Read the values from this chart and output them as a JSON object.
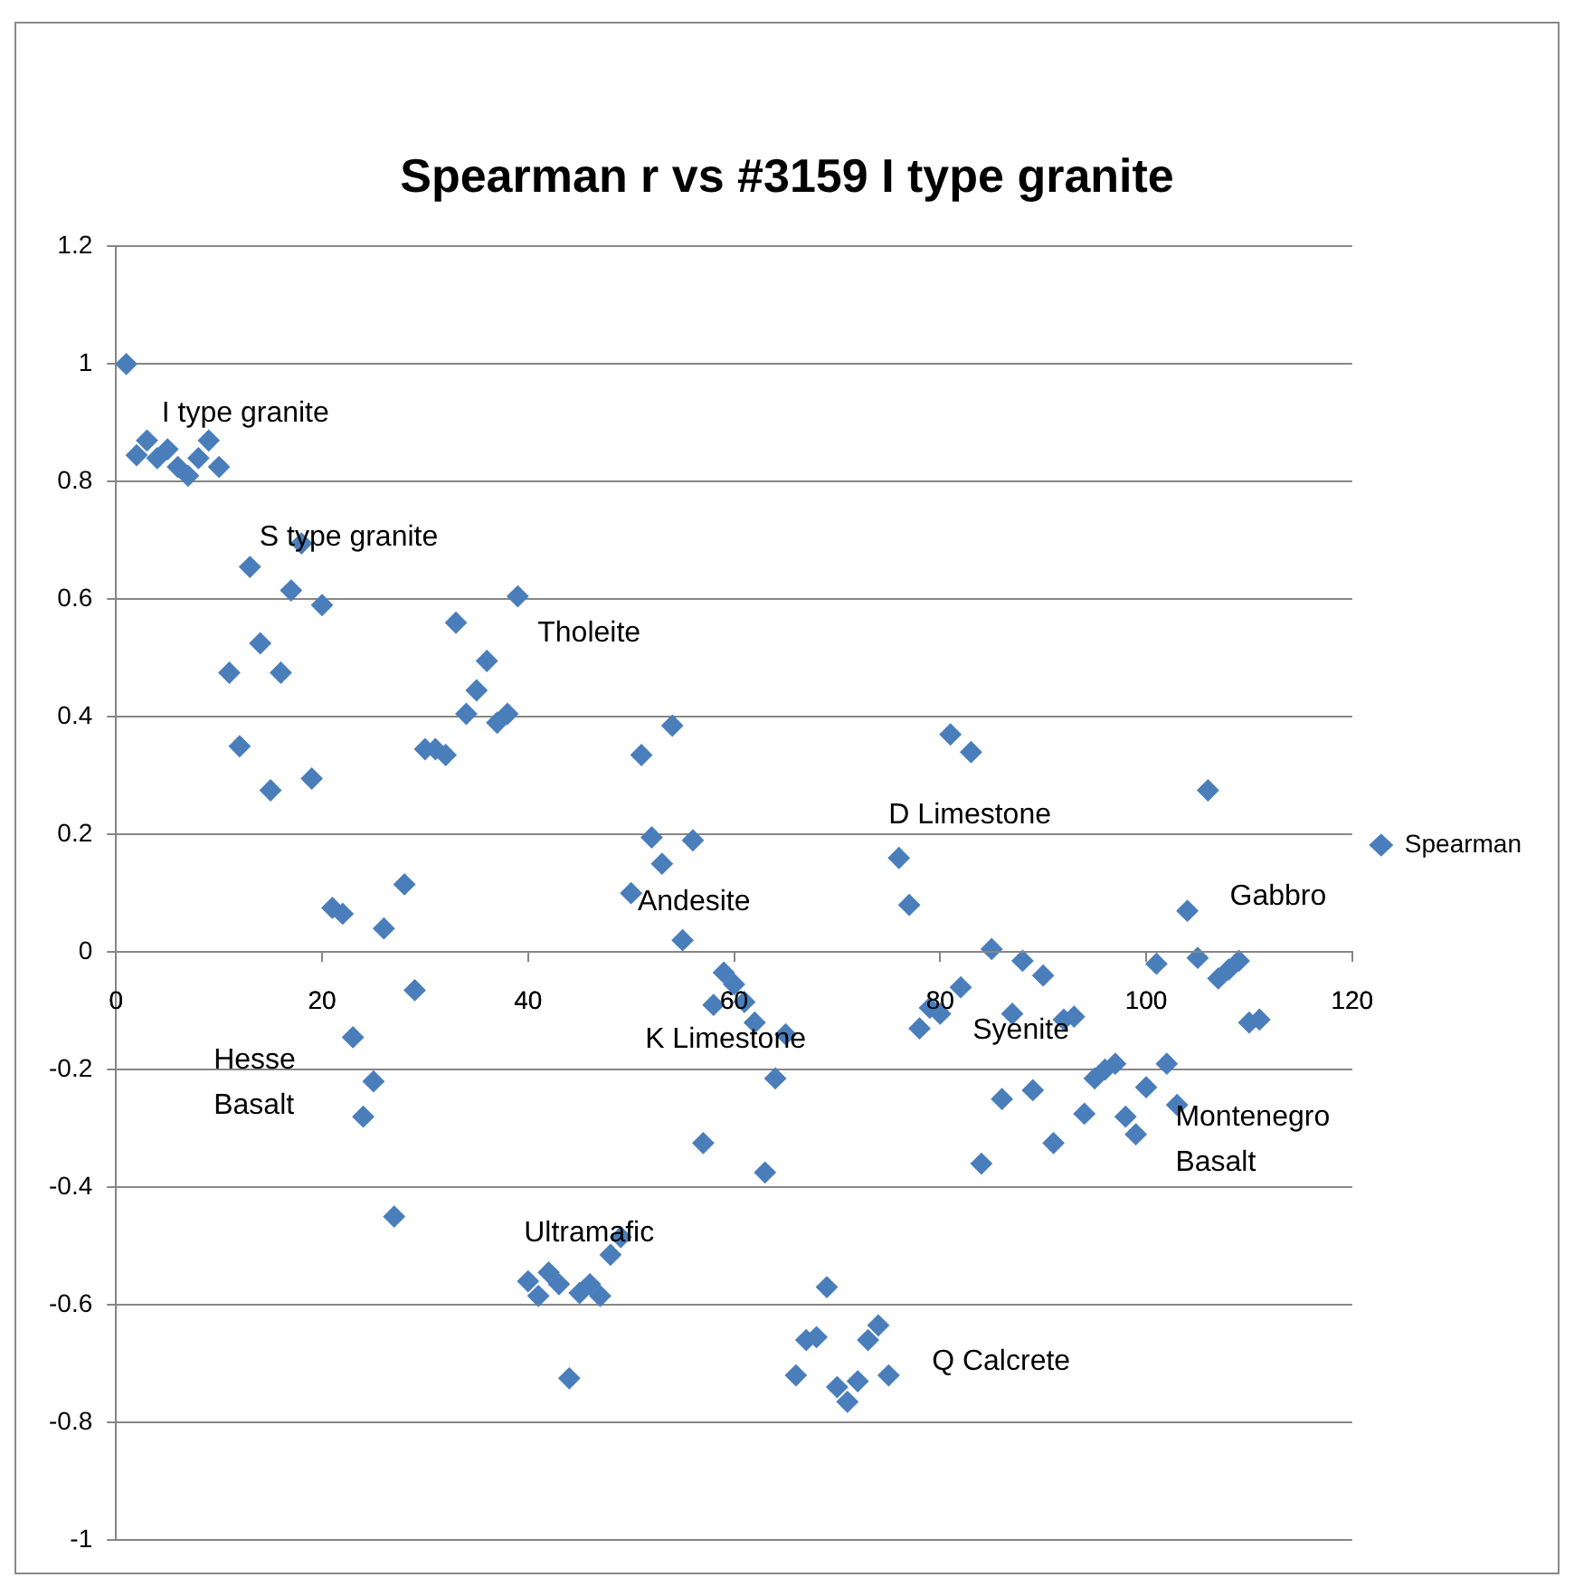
{
  "chart_data": {
    "type": "scatter",
    "title": "Spearman r vs #3159 I type granite",
    "x": [
      1,
      2,
      3,
      4,
      5,
      6,
      7,
      8,
      9,
      10,
      11,
      12,
      13,
      14,
      15,
      16,
      17,
      18,
      19,
      20,
      21,
      22,
      23,
      24,
      25,
      26,
      27,
      28,
      29,
      30,
      31,
      32,
      33,
      34,
      35,
      36,
      37,
      38,
      39,
      40,
      41,
      42,
      43,
      44,
      45,
      46,
      47,
      48,
      49,
      50,
      51,
      52,
      53,
      54,
      55,
      56,
      57,
      58,
      59,
      60,
      61,
      62,
      63,
      64,
      65,
      66,
      67,
      68,
      69,
      70,
      71,
      72,
      73,
      74,
      75,
      76,
      77,
      78,
      79,
      80,
      81,
      82,
      83,
      84,
      85,
      86,
      87,
      88,
      89,
      90,
      91,
      92,
      93,
      94,
      95,
      96,
      97,
      98,
      99,
      100,
      101,
      102,
      103,
      104,
      105,
      106,
      107,
      108,
      109,
      110,
      111
    ],
    "series": [
      {
        "name": "Spearman",
        "color": "#4a7ebb",
        "values": [
          1.0,
          0.845,
          0.87,
          0.84,
          0.855,
          0.825,
          0.81,
          0.84,
          0.87,
          0.825,
          0.475,
          0.35,
          0.655,
          0.525,
          0.275,
          0.475,
          0.615,
          0.695,
          0.295,
          0.59,
          0.075,
          0.065,
          -0.145,
          -0.28,
          -0.22,
          0.04,
          -0.45,
          0.115,
          -0.065,
          0.345,
          0.345,
          0.335,
          0.56,
          0.405,
          0.445,
          0.495,
          0.39,
          0.405,
          0.605,
          -0.56,
          -0.585,
          -0.545,
          -0.565,
          -0.725,
          -0.58,
          -0.565,
          -0.585,
          -0.515,
          -0.485,
          0.1,
          0.335,
          0.195,
          0.15,
          0.385,
          0.02,
          0.19,
          -0.325,
          -0.09,
          -0.035,
          -0.055,
          -0.085,
          -0.12,
          -0.375,
          -0.215,
          -0.14,
          -0.72,
          -0.66,
          -0.655,
          -0.57,
          -0.74,
          -0.765,
          -0.73,
          -0.66,
          -0.635,
          -0.72,
          0.16,
          0.08,
          -0.13,
          -0.095,
          -0.105,
          0.37,
          -0.06,
          0.34,
          -0.36,
          0.005,
          -0.25,
          -0.105,
          -0.015,
          -0.235,
          -0.04,
          -0.325,
          -0.115,
          -0.11,
          -0.275,
          -0.215,
          -0.2,
          -0.19,
          -0.28,
          -0.31,
          -0.23,
          -0.02,
          -0.19,
          -0.26,
          0.07,
          -0.01,
          0.275,
          -0.045,
          -0.03,
          -0.015,
          -0.12,
          -0.115
        ]
      }
    ],
    "marker": "diamond",
    "xlim": [
      0,
      120
    ],
    "xticks": [
      0,
      20,
      40,
      60,
      80,
      100,
      120
    ],
    "ylim": [
      -1,
      1.2
    ],
    "yticks": [
      -1,
      -0.8,
      -0.6,
      -0.4,
      -0.2,
      0,
      0.2,
      0.4,
      0.6,
      0.8,
      1,
      1.2
    ],
    "grid": "y",
    "legend": "right",
    "annotations": [
      "I type granite",
      "S type granite",
      "Tholeite",
      "D Limestone",
      "Andesite",
      "Gabbro",
      "K Limestone",
      "Syenite",
      "Hesse\nBasalt",
      "Montenegro\nBasalt",
      "Ultramafic",
      "Q Calcrete"
    ]
  }
}
